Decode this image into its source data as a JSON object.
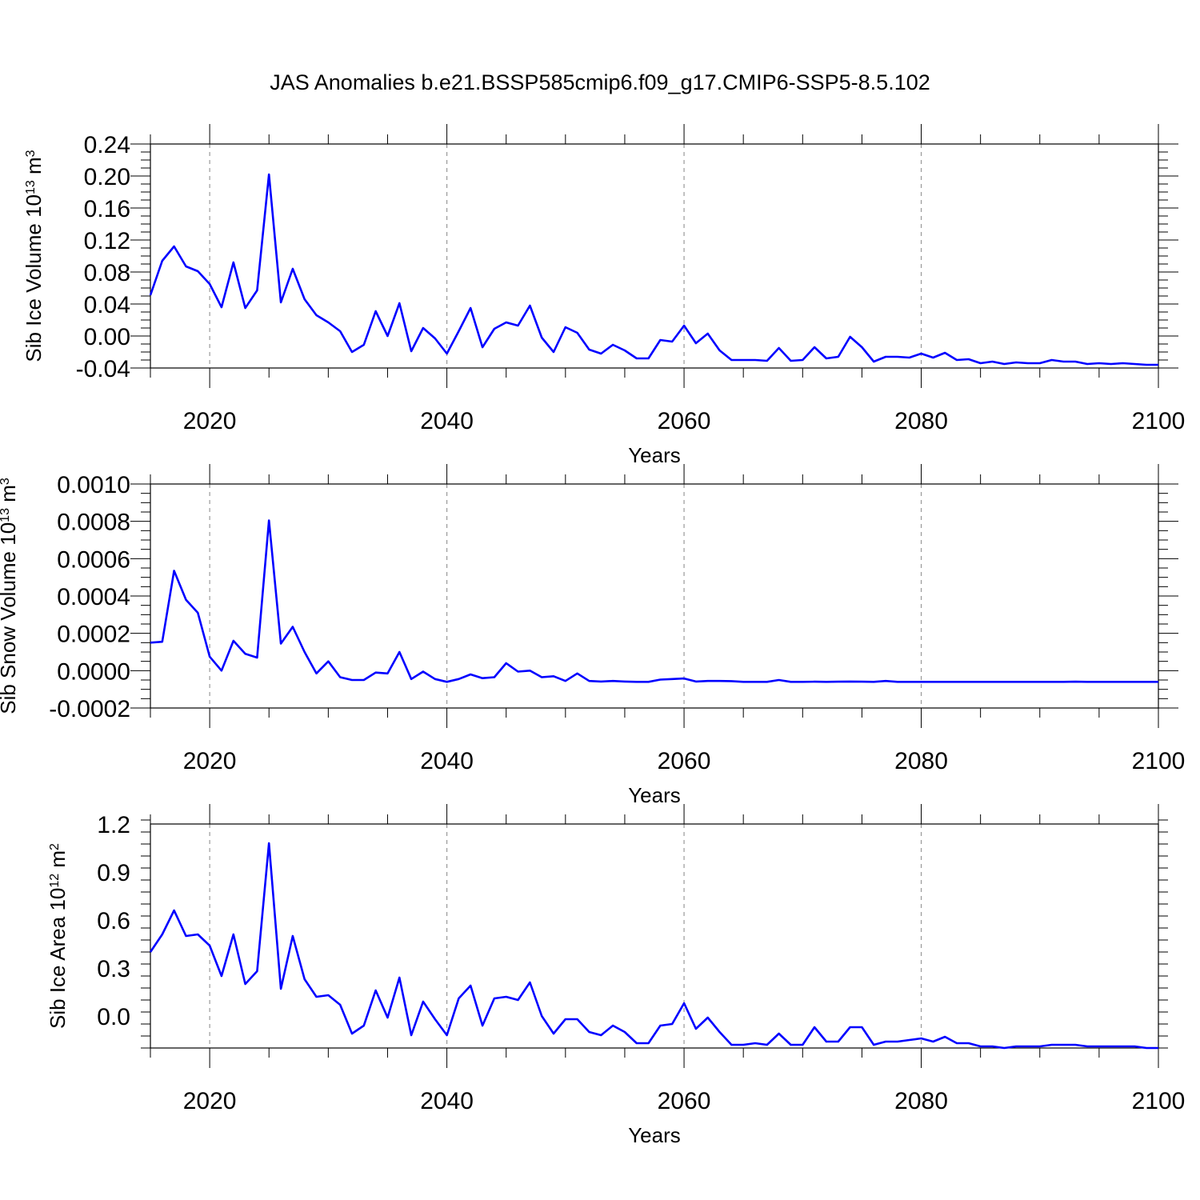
{
  "title": "JAS Anomalies b.e21.BSSP585cmip6.f09_g17.CMIP6-SSP5-8.5.102",
  "chart_data": [
    {
      "type": "line",
      "xlabel": "Years",
      "ylabel_main": "Sib Ice Volume 10",
      "ylabel_exp": "13",
      "ylabel_unit": " m",
      "ylabel_unit_exp": "3",
      "xlim": [
        2015,
        2100
      ],
      "ylim": [
        -0.04,
        0.24
      ],
      "yticks": [
        -0.04,
        0.0,
        0.04,
        0.08,
        0.12,
        0.16,
        0.2,
        0.24
      ],
      "ytick_labels": [
        "-0.04",
        "0.00",
        "0.04",
        "0.08",
        "0.12",
        "0.16",
        "0.20",
        "0.24"
      ],
      "xticks": [
        2020,
        2040,
        2060,
        2080,
        2100
      ],
      "xtick_labels": [
        "2020",
        "2040",
        "2060",
        "2080",
        "2100"
      ],
      "grid": "dashed vertical lines at labeled x ticks",
      "color": "#0000ff",
      "x": [
        2015,
        2016,
        2017,
        2018,
        2019,
        2020,
        2021,
        2022,
        2023,
        2024,
        2025,
        2026,
        2027,
        2028,
        2029,
        2030,
        2031,
        2032,
        2033,
        2034,
        2035,
        2036,
        2037,
        2038,
        2039,
        2040,
        2041,
        2042,
        2043,
        2044,
        2045,
        2046,
        2047,
        2048,
        2049,
        2050,
        2051,
        2052,
        2053,
        2054,
        2055,
        2056,
        2057,
        2058,
        2059,
        2060,
        2061,
        2062,
        2063,
        2064,
        2065,
        2066,
        2067,
        2068,
        2069,
        2070,
        2071,
        2072,
        2073,
        2074,
        2075,
        2076,
        2077,
        2078,
        2079,
        2080,
        2081,
        2082,
        2083,
        2084,
        2085,
        2086,
        2087,
        2088,
        2089,
        2090,
        2091,
        2092,
        2093,
        2094,
        2095,
        2096,
        2097,
        2098,
        2099,
        2100
      ],
      "values": [
        0.051,
        0.094,
        0.112,
        0.087,
        0.081,
        0.065,
        0.036,
        0.092,
        0.035,
        0.057,
        0.202,
        0.042,
        0.084,
        0.046,
        0.026,
        0.017,
        0.006,
        -0.02,
        -0.011,
        0.031,
        0.0,
        0.041,
        -0.019,
        0.01,
        -0.003,
        -0.022,
        0.006,
        0.035,
        -0.014,
        0.009,
        0.017,
        0.013,
        0.038,
        -0.002,
        -0.02,
        0.011,
        0.004,
        -0.017,
        -0.022,
        -0.011,
        -0.018,
        -0.028,
        -0.028,
        -0.005,
        -0.007,
        0.013,
        -0.009,
        0.003,
        -0.018,
        -0.03,
        -0.03,
        -0.03,
        -0.031,
        -0.015,
        -0.031,
        -0.03,
        -0.014,
        -0.028,
        -0.026,
        -0.001,
        -0.014,
        -0.032,
        -0.026,
        -0.026,
        -0.027,
        -0.022,
        -0.027,
        -0.021,
        -0.03,
        -0.029,
        -0.034,
        -0.032,
        -0.035,
        -0.033,
        -0.034,
        -0.034,
        -0.03,
        -0.032,
        -0.032,
        -0.035,
        -0.034,
        -0.035,
        -0.034,
        -0.035,
        -0.036,
        -0.036
      ]
    },
    {
      "type": "line",
      "xlabel": "Years",
      "ylabel_main": "Sib Snow Volume 10",
      "ylabel_exp": "13",
      "ylabel_unit": " m",
      "ylabel_unit_exp": "3",
      "xlim": [
        2015,
        2100
      ],
      "ylim": [
        -0.0002,
        0.001
      ],
      "yticks": [
        -0.0002,
        0.0,
        0.0002,
        0.0004,
        0.0006,
        0.0008,
        0.001
      ],
      "ytick_labels": [
        "-0.0002",
        "0.0000",
        "0.0002",
        "0.0004",
        "0.0006",
        "0.0008",
        "0.0010"
      ],
      "xticks": [
        2020,
        2040,
        2060,
        2080,
        2100
      ],
      "xtick_labels": [
        "2020",
        "2040",
        "2060",
        "2080",
        "2100"
      ],
      "grid": "dashed vertical lines at labeled x ticks",
      "color": "#0000ff",
      "x": [
        2015,
        2016,
        2017,
        2018,
        2019,
        2020,
        2021,
        2022,
        2023,
        2024,
        2025,
        2026,
        2027,
        2028,
        2029,
        2030,
        2031,
        2032,
        2033,
        2034,
        2035,
        2036,
        2037,
        2038,
        2039,
        2040,
        2041,
        2042,
        2043,
        2044,
        2045,
        2046,
        2047,
        2048,
        2049,
        2050,
        2051,
        2052,
        2053,
        2054,
        2055,
        2056,
        2057,
        2058,
        2059,
        2060,
        2061,
        2062,
        2063,
        2064,
        2065,
        2066,
        2067,
        2068,
        2069,
        2070,
        2071,
        2072,
        2073,
        2074,
        2075,
        2076,
        2077,
        2078,
        2079,
        2080,
        2081,
        2082,
        2083,
        2084,
        2085,
        2086,
        2087,
        2088,
        2089,
        2090,
        2091,
        2092,
        2093,
        2094,
        2095,
        2096,
        2097,
        2098,
        2099,
        2100
      ],
      "values": [
        0.00015,
        0.000155,
        0.000535,
        0.00038,
        0.00031,
        7.5e-05,
        0.0,
        0.00016,
        9e-05,
        7e-05,
        0.000805,
        0.000145,
        0.000235,
        0.0001,
        -1.5e-05,
        5e-05,
        -3.5e-05,
        -5e-05,
        -5e-05,
        -1e-05,
        -1.5e-05,
        0.0001,
        -4.5e-05,
        -5e-06,
        -4.5e-05,
        -6e-05,
        -4.5e-05,
        -2e-05,
        -4e-05,
        -3.5e-05,
        4e-05,
        -5e-06,
        0.0,
        -3.5e-05,
        -3e-05,
        -5.5e-05,
        -1.5e-05,
        -5.5e-05,
        -5.8e-05,
        -5.5e-05,
        -5.8e-05,
        -6e-05,
        -6e-05,
        -4.8e-05,
        -4.5e-05,
        -4.2e-05,
        -5.8e-05,
        -5.5e-05,
        -5.5e-05,
        -5.6e-05,
        -6e-05,
        -6e-05,
        -6e-05,
        -5e-05,
        -6e-05,
        -6e-05,
        -5.9e-05,
        -6e-05,
        -5.9e-05,
        -5.8e-05,
        -5.9e-05,
        -6e-05,
        -5.5e-05,
        -6e-05,
        -6e-05,
        -6e-05,
        -6e-05,
        -6e-05,
        -6e-05,
        -6e-05,
        -6e-05,
        -6e-05,
        -6e-05,
        -6e-05,
        -6e-05,
        -6e-05,
        -6e-05,
        -6e-05,
        -5.9e-05,
        -6e-05,
        -6e-05,
        -6e-05,
        -6e-05,
        -6e-05,
        -6e-05,
        -6e-05
      ]
    },
    {
      "type": "line",
      "xlabel": "Years",
      "ylabel_main": "Sib Ice Area 10",
      "ylabel_exp": "12",
      "ylabel_unit": " m",
      "ylabel_unit_exp": "2",
      "xlim": [
        2015,
        2100
      ],
      "ylim": [
        -0.2,
        1.2
      ],
      "yticks": [
        0.0,
        0.3,
        0.6,
        0.9,
        1.2
      ],
      "ytick_labels": [
        "0.0",
        "0.3",
        "0.6",
        "0.9",
        "1.2"
      ],
      "xticks": [
        2020,
        2040,
        2060,
        2080,
        2100
      ],
      "xtick_labels": [
        "2020",
        "2040",
        "2060",
        "2080",
        "2100"
      ],
      "grid": "dashed vertical lines at labeled x ticks",
      "color": "#0000ff",
      "x": [
        2015,
        2016,
        2017,
        2018,
        2019,
        2020,
        2021,
        2022,
        2023,
        2024,
        2025,
        2026,
        2027,
        2028,
        2029,
        2030,
        2031,
        2032,
        2033,
        2034,
        2035,
        2036,
        2037,
        2038,
        2039,
        2040,
        2041,
        2042,
        2043,
        2044,
        2045,
        2046,
        2047,
        2048,
        2049,
        2050,
        2051,
        2052,
        2053,
        2054,
        2055,
        2056,
        2057,
        2058,
        2059,
        2060,
        2061,
        2062,
        2063,
        2064,
        2065,
        2066,
        2067,
        2068,
        2069,
        2070,
        2071,
        2072,
        2073,
        2074,
        2075,
        2076,
        2077,
        2078,
        2079,
        2080,
        2081,
        2082,
        2083,
        2084,
        2085,
        2086,
        2087,
        2088,
        2089,
        2090,
        2091,
        2092,
        2093,
        2094,
        2095,
        2096,
        2097,
        2098,
        2099,
        2100
      ],
      "values": [
        0.4,
        0.51,
        0.66,
        0.5,
        0.51,
        0.44,
        0.25,
        0.51,
        0.2,
        0.28,
        1.08,
        0.17,
        0.5,
        0.23,
        0.12,
        0.13,
        0.07,
        -0.11,
        -0.06,
        0.16,
        -0.01,
        0.24,
        -0.12,
        0.09,
        -0.02,
        -0.12,
        0.11,
        0.19,
        -0.06,
        0.11,
        0.12,
        0.1,
        0.21,
        0.0,
        -0.11,
        -0.02,
        -0.02,
        -0.1,
        -0.12,
        -0.06,
        -0.1,
        -0.17,
        -0.17,
        -0.06,
        -0.05,
        0.08,
        -0.08,
        -0.01,
        -0.1,
        -0.18,
        -0.18,
        -0.17,
        -0.18,
        -0.11,
        -0.18,
        -0.18,
        -0.07,
        -0.16,
        -0.16,
        -0.07,
        -0.07,
        -0.18,
        -0.16,
        -0.16,
        -0.15,
        -0.14,
        -0.16,
        -0.13,
        -0.17,
        -0.17,
        -0.19,
        -0.19,
        -0.2,
        -0.19,
        -0.19,
        -0.19,
        -0.18,
        -0.18,
        -0.18,
        -0.19,
        -0.19,
        -0.19,
        -0.19,
        -0.19,
        -0.2,
        -0.2
      ]
    }
  ]
}
